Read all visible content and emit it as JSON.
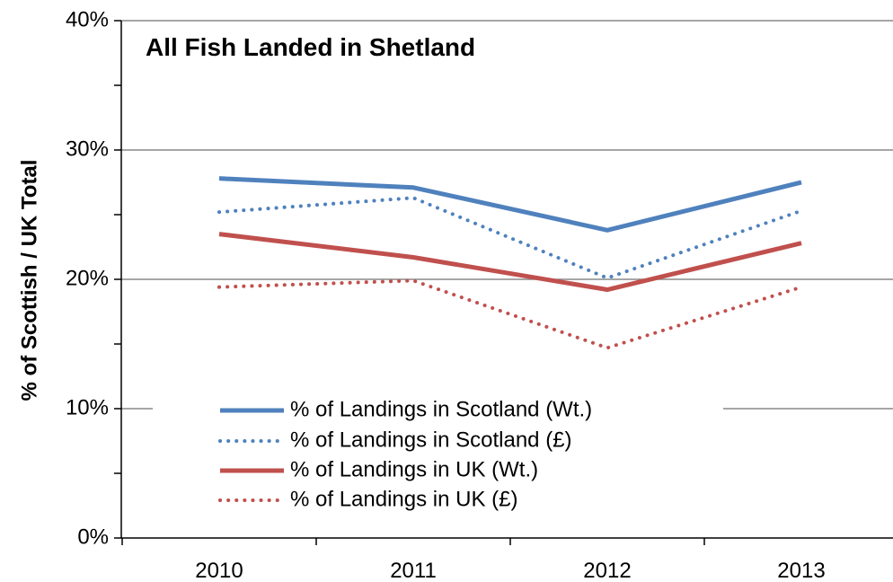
{
  "chart_data": {
    "type": "line",
    "title": "All Fish Landed in Shetland",
    "xlabel": "",
    "ylabel": "% of Scottish / UK Total",
    "categories": [
      "2010",
      "2011",
      "2012",
      "2013"
    ],
    "ylim": [
      0,
      40
    ],
    "yticks": [
      0,
      10,
      20,
      30,
      40
    ],
    "ytick_labels": [
      "0%",
      "10%",
      "20%",
      "30%",
      "40%"
    ],
    "grid": true,
    "legend_position": "bottom-left",
    "series": [
      {
        "name": "% of Landings in Scotland (Wt.)",
        "values": [
          27.8,
          27.1,
          23.8,
          27.5
        ],
        "color": "#4f81bd",
        "style": "solid"
      },
      {
        "name": "% of Landings in Scotland (£)",
        "values": [
          25.2,
          26.3,
          20.1,
          25.3
        ],
        "color": "#4f81bd",
        "style": "dotted"
      },
      {
        "name": "% of Landings in UK (Wt.)",
        "values": [
          23.5,
          21.7,
          19.2,
          22.8
        ],
        "color": "#c0504d",
        "style": "solid"
      },
      {
        "name": "% of Landings in UK (£)",
        "values": [
          19.4,
          19.9,
          14.7,
          19.4
        ],
        "color": "#c0504d",
        "style": "dotted"
      }
    ]
  }
}
